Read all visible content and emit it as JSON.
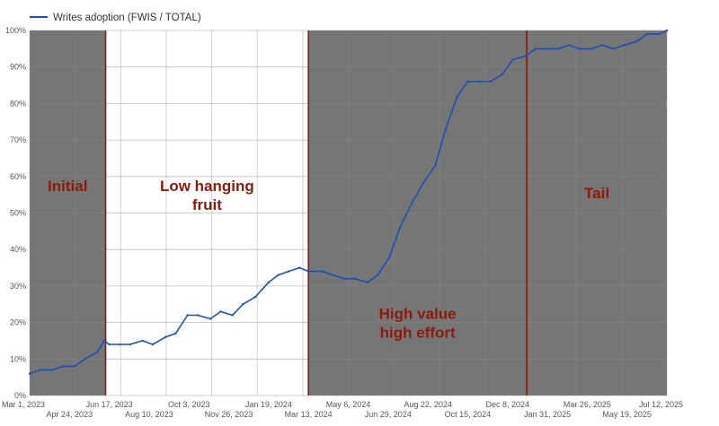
{
  "chart_data": {
    "type": "line",
    "title": "",
    "xlabel": "",
    "ylabel": "",
    "ylim": [
      0,
      1
    ],
    "xlim": [
      "2023-03-01",
      "2025-07-12"
    ],
    "grid": true,
    "legend": {
      "position": "top-left",
      "entries": [
        "Writes adoption (FWIS / TOTAL)"
      ]
    },
    "y_ticks": [
      "0%",
      "10%",
      "20%",
      "30%",
      "40%",
      "50%",
      "60%",
      "70%",
      "80%",
      "90%",
      "100%"
    ],
    "x_ticks_top": [
      "Mar 1, 2023",
      "Jun 17, 2023",
      "Oct 3, 2023",
      "Jan 19, 2024",
      "May 6, 2024",
      "Aug 22, 2024",
      "Dec 8, 2024",
      "Mar 26, 2025",
      "Jul 12, 2025"
    ],
    "x_ticks_bottom": [
      "Apr 24, 2023",
      "Aug 10, 2023",
      "Nov 26, 2023",
      "Mar 13, 2024",
      "Jun 29, 2024",
      "Oct 15, 2024",
      "Jan 31, 2025",
      "May 19, 2025"
    ],
    "series": [
      {
        "name": "Writes adoption (FWIS / TOTAL)",
        "color": "#1f4fb4",
        "points": [
          [
            "2023-03-01",
            0.06
          ],
          [
            "2023-03-15",
            0.07
          ],
          [
            "2023-04-01",
            0.07
          ],
          [
            "2023-04-15",
            0.08
          ],
          [
            "2023-05-01",
            0.08
          ],
          [
            "2023-05-15",
            0.1
          ],
          [
            "2023-06-01",
            0.12
          ],
          [
            "2023-06-10",
            0.15
          ],
          [
            "2023-06-17",
            0.14
          ],
          [
            "2023-07-01",
            0.14
          ],
          [
            "2023-07-15",
            0.14
          ],
          [
            "2023-08-01",
            0.15
          ],
          [
            "2023-08-15",
            0.14
          ],
          [
            "2023-09-01",
            0.16
          ],
          [
            "2023-09-15",
            0.17
          ],
          [
            "2023-10-01",
            0.22
          ],
          [
            "2023-10-15",
            0.22
          ],
          [
            "2023-11-01",
            0.21
          ],
          [
            "2023-11-15",
            0.23
          ],
          [
            "2023-12-01",
            0.22
          ],
          [
            "2023-12-15",
            0.25
          ],
          [
            "2024-01-01",
            0.27
          ],
          [
            "2024-01-19",
            0.31
          ],
          [
            "2024-02-01",
            0.33
          ],
          [
            "2024-02-15",
            0.34
          ],
          [
            "2024-03-01",
            0.35
          ],
          [
            "2024-03-13",
            0.34
          ],
          [
            "2024-04-01",
            0.34
          ],
          [
            "2024-04-15",
            0.33
          ],
          [
            "2024-05-01",
            0.32
          ],
          [
            "2024-05-15",
            0.32
          ],
          [
            "2024-06-01",
            0.31
          ],
          [
            "2024-06-15",
            0.33
          ],
          [
            "2024-07-01",
            0.38
          ],
          [
            "2024-07-15",
            0.46
          ],
          [
            "2024-08-01",
            0.53
          ],
          [
            "2024-08-15",
            0.58
          ],
          [
            "2024-09-01",
            0.63
          ],
          [
            "2024-09-15",
            0.73
          ],
          [
            "2024-10-01",
            0.82
          ],
          [
            "2024-10-15",
            0.86
          ],
          [
            "2024-11-01",
            0.86
          ],
          [
            "2024-11-15",
            0.86
          ],
          [
            "2024-12-01",
            0.88
          ],
          [
            "2024-12-15",
            0.92
          ],
          [
            "2025-01-01",
            0.93
          ],
          [
            "2025-01-15",
            0.95
          ],
          [
            "2025-02-01",
            0.95
          ],
          [
            "2025-02-15",
            0.95
          ],
          [
            "2025-03-01",
            0.96
          ],
          [
            "2025-03-15",
            0.95
          ],
          [
            "2025-04-01",
            0.95
          ],
          [
            "2025-04-15",
            0.96
          ],
          [
            "2025-05-01",
            0.95
          ],
          [
            "2025-05-15",
            0.96
          ],
          [
            "2025-06-01",
            0.97
          ],
          [
            "2025-06-15",
            0.99
          ],
          [
            "2025-07-01",
            0.99
          ],
          [
            "2025-07-12",
            1.0
          ]
        ]
      }
    ],
    "phases": [
      {
        "label_lines": [
          "Initial"
        ],
        "start": "2023-03-01",
        "end": "2023-06-12",
        "shaded": true,
        "label_y": 0.56
      },
      {
        "label_lines": [
          "Low hanging",
          "fruit"
        ],
        "start": "2023-06-12",
        "end": "2024-03-13",
        "shaded": false,
        "label_y": 0.56
      },
      {
        "label_lines": [
          "High value",
          "high effort"
        ],
        "start": "2024-03-13",
        "end": "2025-01-03",
        "shaded": true,
        "label_y": 0.21
      },
      {
        "label_lines": [
          "Tail"
        ],
        "start": "2025-01-03",
        "end": "2025-07-12",
        "shaded": true,
        "label_y": 0.54
      }
    ],
    "shading_color": "#767676",
    "divider_color": "#8b1a0c"
  }
}
